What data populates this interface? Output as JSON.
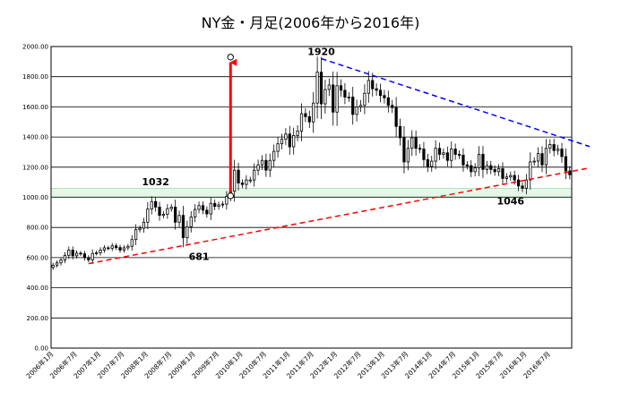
{
  "chart_data": {
    "type": "candlestick",
    "title": "NY金・月足(2006年から2016年)",
    "ylim": [
      0,
      2000
    ],
    "yticks": [
      "0.00",
      "200.00",
      "400.00",
      "600.00",
      "800.00",
      "1000.00",
      "1200.00",
      "1400.00",
      "1600.00",
      "1800.00",
      "2000.00"
    ],
    "xtick_labels": [
      "2006年1月",
      "2006年7月",
      "2007年1月",
      "2007年7月",
      "2008年1月",
      "2008年7月",
      "2009年1月",
      "2009年7月",
      "2010年1月",
      "2010年7月",
      "2011年1月",
      "2011年7月",
      "2012年1月",
      "2012年7月",
      "2013年1月",
      "2013年7月",
      "2014年1月",
      "2014年7月",
      "2015年1月",
      "2015年7月",
      "2016年1月",
      "2016年7月"
    ],
    "grid": true,
    "monthly_close": [
      550,
      565,
      585,
      615,
      650,
      612,
      630,
      625,
      600,
      585,
      628,
      632,
      650,
      665,
      662,
      678,
      667,
      650,
      665,
      675,
      720,
      785,
      795,
      835,
      922,
      972,
      935,
      880,
      888,
      925,
      935,
      835,
      880,
      732,
      805,
      870,
      920,
      945,
      915,
      890,
      960,
      940,
      950,
      955,
      1005,
      1040,
      1180,
      1095,
      1085,
      1115,
      1115,
      1180,
      1215,
      1245,
      1180,
      1245,
      1305,
      1355,
      1385,
      1420,
      1335,
      1410,
      1440,
      1555,
      1535,
      1500,
      1625,
      1830,
      1620,
      1715,
      1745,
      1565,
      1740,
      1710,
      1665,
      1665,
      1550,
      1600,
      1610,
      1690,
      1775,
      1720,
      1710,
      1675,
      1660,
      1610,
      1595,
      1470,
      1395,
      1235,
      1325,
      1395,
      1325,
      1320,
      1250,
      1205,
      1240,
      1325,
      1285,
      1295,
      1245,
      1320,
      1285,
      1280,
      1215,
      1210,
      1170,
      1195,
      1285,
      1185,
      1210,
      1185,
      1170,
      1190,
      1125,
      1135,
      1145,
      1115,
      1075,
      1060,
      1115,
      1235,
      1240,
      1290,
      1215,
      1325,
      1350,
      1310,
      1320,
      1270,
      1175,
      1150
    ],
    "data_start": "2006年1月",
    "annotations": [
      {
        "text": "1920",
        "x_month": 68,
        "y": 1920
      },
      {
        "text": "1032",
        "x_month": 26,
        "y": 1032
      },
      {
        "text": "681",
        "x_month": 37,
        "y": 681
      },
      {
        "text": "1046",
        "x_month": 116,
        "y": 1046
      }
    ],
    "resistance_line": {
      "from": [
        68,
        1920
      ],
      "to": [
        138,
        1320
      ],
      "color": "#0000ff"
    },
    "support_line": {
      "from": [
        9,
        560
      ],
      "to": [
        138,
        1205
      ],
      "color": "#ff0000"
    },
    "target_arrow": {
      "x_month": 45,
      "from": 1010,
      "to": 1930,
      "color": "#ff0000"
    },
    "zone_band": [
      1005,
      1060
    ],
    "candle_color": "#000000"
  }
}
